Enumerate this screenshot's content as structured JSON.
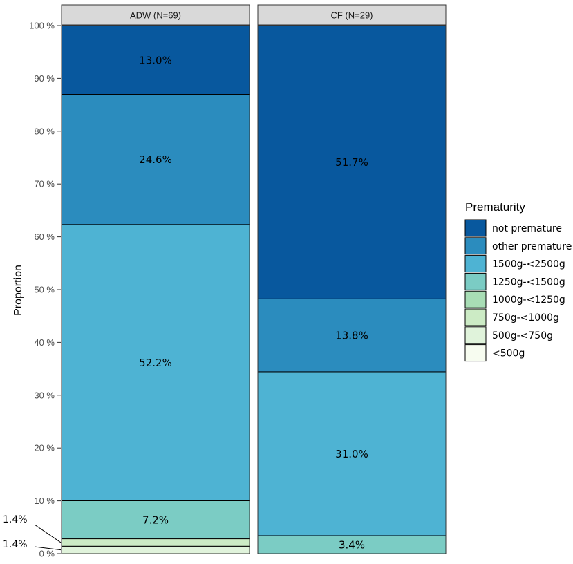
{
  "chart_data": {
    "type": "bar",
    "stacked": true,
    "ylabel": "Proportion",
    "ylim": [
      0,
      100
    ],
    "yticks": [
      "0 %",
      "10 %",
      "20 %",
      "30 %",
      "40 %",
      "50 %",
      "60 %",
      "70 %",
      "80 %",
      "90 %",
      "100 %"
    ],
    "panels": [
      "ADW (N=69)",
      "CF (N=29)"
    ],
    "legend_title": "Prematurity",
    "legend_position": "right",
    "series": [
      {
        "name": "not premature",
        "color": "#08589e",
        "values": [
          13.0,
          51.7
        ],
        "labels": [
          "13.0%",
          "51.7%"
        ]
      },
      {
        "name": "other premature",
        "color": "#2b8cbe",
        "values": [
          24.6,
          13.8
        ],
        "labels": [
          "24.6%",
          "13.8%"
        ]
      },
      {
        "name": "1500g-<2500g",
        "color": "#4eb3d3",
        "values": [
          52.2,
          31.0
        ],
        "labels": [
          "52.2%",
          "31.0%"
        ]
      },
      {
        "name": "1250g-<1500g",
        "color": "#7bccc4",
        "values": [
          7.2,
          3.4
        ],
        "labels": [
          "7.2%",
          "3.4%"
        ]
      },
      {
        "name": "1000g-<1250g",
        "color": "#a8ddb5",
        "values": [
          0,
          0
        ],
        "labels": [
          "",
          ""
        ]
      },
      {
        "name": "750g-<1000g",
        "color": "#ccebc5",
        "values": [
          1.4,
          0
        ],
        "labels": [
          "",
          ""
        ]
      },
      {
        "name": "500g-<750g",
        "color": "#e0f3db",
        "values": [
          1.4,
          0
        ],
        "labels": [
          "",
          ""
        ]
      },
      {
        "name": "<500g",
        "color": "#f7fcf0",
        "values": [
          0,
          0
        ],
        "labels": [
          "",
          ""
        ]
      }
    ],
    "side_annotations": [
      {
        "text": "1.4%",
        "panel": 0,
        "series": "750g-<1000g"
      },
      {
        "text": "1.4%",
        "panel": 0,
        "series": "500g-<750g"
      }
    ]
  }
}
